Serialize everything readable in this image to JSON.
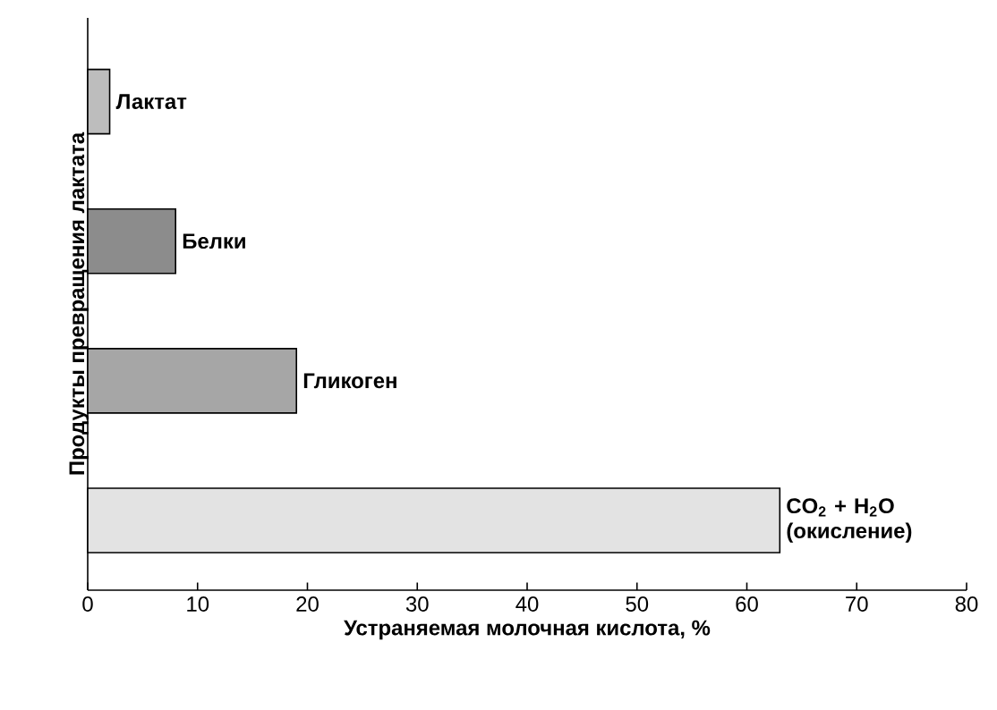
{
  "chart_data": {
    "type": "bar",
    "orientation": "horizontal",
    "categories": [
      "Лактат",
      "Белки",
      "Гликоген",
      "CO$_{2}$ + H$_{2}$O (окисление)"
    ],
    "values": [
      2,
      8,
      19,
      63
    ],
    "colors": [
      "#bdbdbd",
      "#8c8c8c",
      "#a6a6a6",
      "#e3e3e3"
    ],
    "xlim": [
      0,
      80
    ],
    "xticks": [
      0,
      10,
      20,
      30,
      40,
      50,
      60,
      70,
      80
    ],
    "xlabel": "Устраняемая молочная кислота, %",
    "ylabel": "Продукты превращения лактата",
    "grid": false
  }
}
